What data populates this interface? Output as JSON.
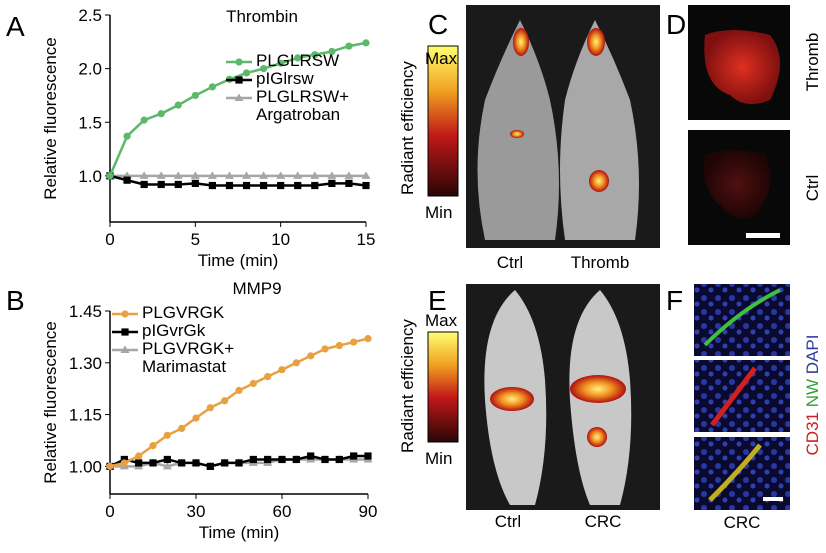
{
  "chart_data": [
    {
      "type": "line",
      "title": "Thrombin",
      "xlabel": "Time (min)",
      "ylabel": "Relative fluorescence",
      "x": [
        0,
        1,
        2,
        3,
        4,
        5,
        6,
        7,
        8,
        9,
        10,
        11,
        12,
        13,
        14,
        15
      ],
      "xlim": [
        0,
        15
      ],
      "xticks": [
        0,
        5,
        10,
        15
      ],
      "ylim": [
        0.57,
        2.5
      ],
      "yticks": [
        {
          "value": 1,
          "label": "1.0"
        },
        {
          "value": 1.5,
          "label": "1.5"
        },
        {
          "value": 2,
          "label": "2.0"
        },
        {
          "value": 2.5,
          "label": "2.5"
        }
      ],
      "series": [
        {
          "name": "PLGLRSW",
          "color": "#5cb86a",
          "marker": "circle",
          "values": [
            1.0,
            1.37,
            1.52,
            1.58,
            1.66,
            1.75,
            1.83,
            1.9,
            1.96,
            2.0,
            2.05,
            2.1,
            2.13,
            2.16,
            2.21,
            2.24
          ]
        },
        {
          "name": "pIGlrsw",
          "color": "#000000",
          "marker": "square",
          "values": [
            1.0,
            0.96,
            0.92,
            0.92,
            0.92,
            0.93,
            0.91,
            0.91,
            0.91,
            0.91,
            0.91,
            0.91,
            0.91,
            0.93,
            0.93,
            0.91
          ]
        },
        {
          "name": "PLGLRSW+ Argatroban",
          "color": "#a6a6a6",
          "marker": "triangle",
          "values": [
            1.0,
            1.0,
            1.0,
            1.0,
            1.0,
            1.0,
            1.0,
            1.0,
            1.0,
            1.0,
            1.0,
            1.0,
            1.0,
            1.0,
            1.0,
            1.0
          ]
        }
      ]
    },
    {
      "type": "line",
      "title": "MMP9",
      "xlabel": "Time (min)",
      "ylabel": "Relative fluorescence",
      "x": [
        0,
        5,
        10,
        15,
        20,
        25,
        30,
        35,
        40,
        45,
        50,
        55,
        60,
        65,
        70,
        75,
        80,
        85,
        90
      ],
      "xlim": [
        0,
        90
      ],
      "xticks": [
        0,
        30,
        60,
        90
      ],
      "ylim": [
        0.92,
        1.45
      ],
      "yticks": [
        {
          "value": 1,
          "label": "1.00"
        },
        {
          "value": 1.15,
          "label": "1.15"
        },
        {
          "value": 1.3,
          "label": "1.30"
        },
        {
          "value": 1.45,
          "label": "1.45"
        }
      ],
      "series": [
        {
          "name": "PLGVRGK",
          "color": "#e8a040",
          "marker": "circle",
          "values": [
            1.0,
            1.01,
            1.03,
            1.06,
            1.09,
            1.11,
            1.14,
            1.17,
            1.19,
            1.22,
            1.24,
            1.26,
            1.28,
            1.3,
            1.32,
            1.34,
            1.35,
            1.36,
            1.37
          ]
        },
        {
          "name": "pIGvrGk",
          "color": "#000000",
          "marker": "square",
          "values": [
            1.0,
            1.02,
            1.01,
            1.01,
            1.02,
            1.01,
            1.01,
            1.0,
            1.01,
            1.01,
            1.02,
            1.02,
            1.02,
            1.02,
            1.03,
            1.02,
            1.02,
            1.03,
            1.03
          ]
        },
        {
          "name": "PLGVRGK+ Marimastat",
          "color": "#a6a6a6",
          "marker": "triangle",
          "values": [
            1.0,
            1.0,
            1.0,
            1.01,
            1.0,
            1.01,
            1.01,
            1.0,
            1.01,
            1.01,
            1.01,
            1.01,
            1.02,
            1.02,
            1.02,
            1.02,
            1.02,
            1.02,
            1.02
          ]
        }
      ]
    }
  ],
  "panels": {
    "letters": [
      "A",
      "B",
      "C",
      "D",
      "E",
      "F"
    ],
    "c": {
      "max": "Max",
      "min": "Min",
      "scale": "Radiant efficiency",
      "left": "Ctrl",
      "right": "Thromb"
    },
    "d": {
      "top": "Thromb",
      "bottom": "Ctrl"
    },
    "e": {
      "max": "Max",
      "min": "Min",
      "scale": "Radiant efficiency",
      "left": "Ctrl",
      "right": "CRC"
    },
    "f": {
      "stain1": "CD31",
      "stain2": "NW",
      "stain3": "DAPI",
      "label": "CRC"
    }
  }
}
